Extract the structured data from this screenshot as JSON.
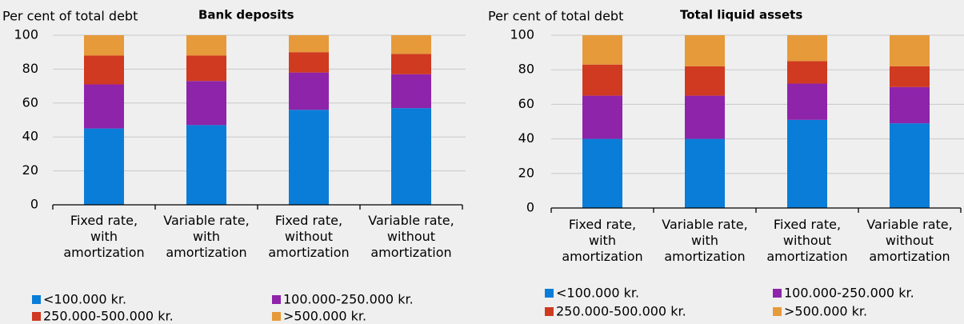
{
  "chart_data": [
    {
      "type": "bar",
      "stacked": true,
      "title": "Bank deposits",
      "ylabel": "Per cent of total debt",
      "categories": [
        "Fixed rate, with amortization",
        "Variable rate, with amortization",
        "Fixed rate, without amortization",
        "Variable rate, without amortization"
      ],
      "series": [
        {
          "name": "<100.000 kr.",
          "color": "#0a7dd8",
          "values": [
            45,
            47,
            56,
            57
          ]
        },
        {
          "name": "100.000-250.000 kr.",
          "color": "#8e24aa",
          "values": [
            26,
            26,
            22,
            20
          ]
        },
        {
          "name": "250.000-500.000 kr.",
          "color": "#d03a20",
          "values": [
            17,
            15,
            12,
            12
          ]
        },
        {
          "name": ">500.000 kr.",
          "color": "#e69a3a",
          "values": [
            12,
            12,
            10,
            11
          ]
        }
      ],
      "ylim": [
        0,
        100
      ],
      "yticks": [
        0,
        20,
        40,
        60,
        80,
        100
      ],
      "grid": true
    },
    {
      "type": "bar",
      "stacked": true,
      "title": "Total liquid assets",
      "ylabel": "Per cent of total debt",
      "categories": [
        "Fixed rate, with amortization",
        "Variable rate, with amortization",
        "Fixed rate, without amortization",
        "Variable rate, without amortization"
      ],
      "series": [
        {
          "name": "<100.000 kr.",
          "color": "#0a7dd8",
          "values": [
            40,
            40,
            51,
            49
          ]
        },
        {
          "name": "100.000-250.000 kr.",
          "color": "#8e24aa",
          "values": [
            25,
            25,
            21,
            21
          ]
        },
        {
          "name": "250.000-500.000 kr.",
          "color": "#d03a20",
          "values": [
            18,
            17,
            13,
            12
          ]
        },
        {
          "name": ">500.000 kr.",
          "color": "#e69a3a",
          "values": [
            17,
            18,
            15,
            18
          ]
        }
      ],
      "ylim": [
        0,
        100
      ],
      "yticks": [
        0,
        20,
        40,
        60,
        80,
        100
      ],
      "grid": true
    }
  ]
}
